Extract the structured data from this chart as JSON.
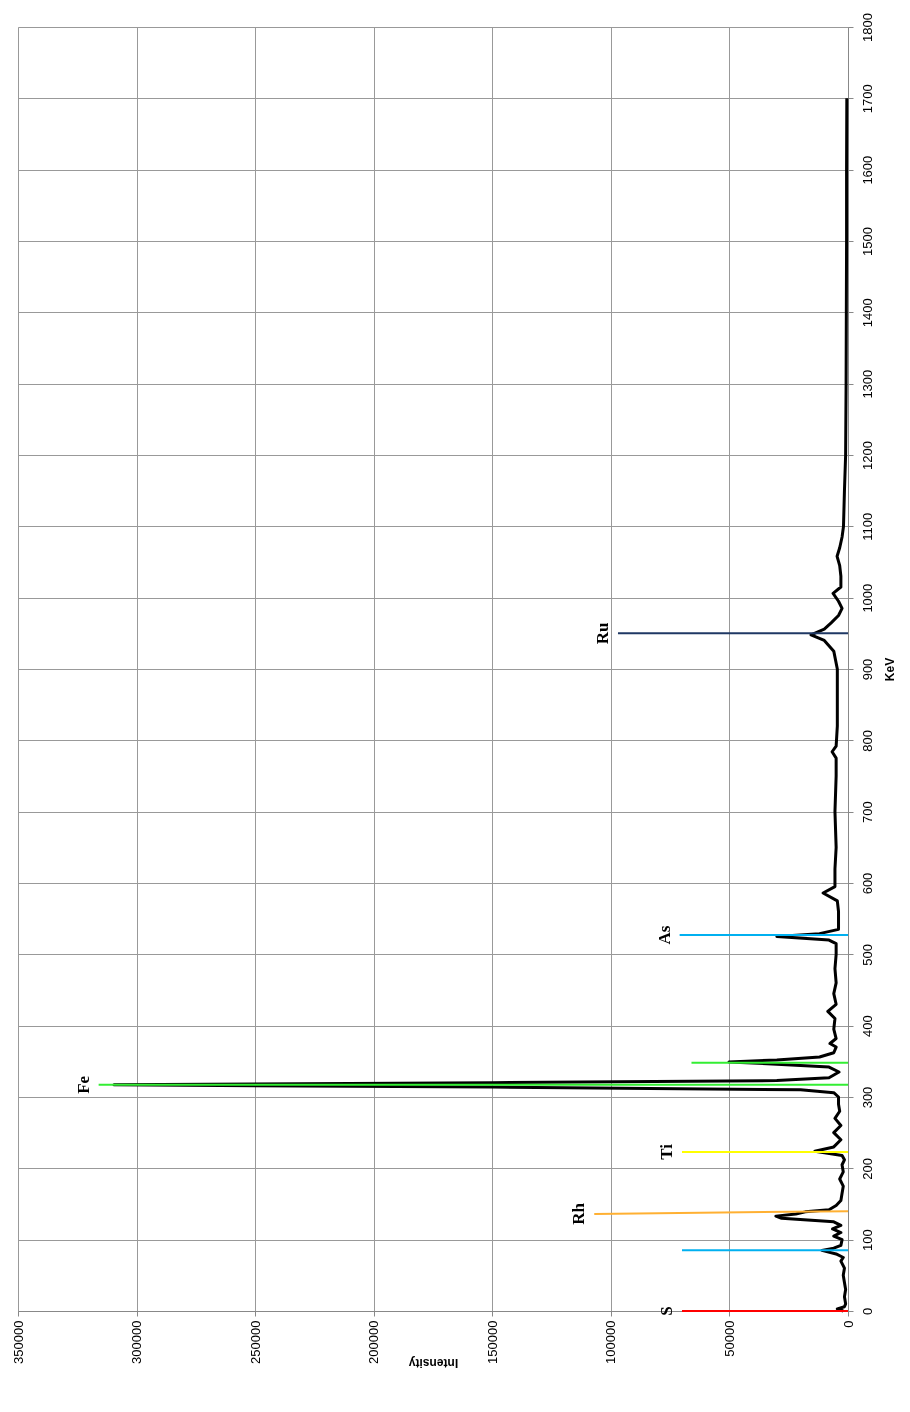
{
  "chart_data": {
    "type": "line",
    "orientation": "horizontal",
    "xlabel": "Intensity",
    "ylabel": "KeV",
    "ylim": [
      0,
      1800
    ],
    "yticks": [
      0,
      100,
      200,
      300,
      400,
      500,
      600,
      700,
      800,
      900,
      1000,
      1100,
      1200,
      1300,
      1400,
      1500,
      1600,
      1700,
      1800
    ],
    "xlim": [
      350000,
      0
    ],
    "xticks": [
      0,
      50000,
      100000,
      150000,
      200000,
      250000,
      300000,
      350000
    ],
    "grid": true,
    "marker": "none",
    "line_style": "solid",
    "series": [
      {
        "type": "line",
        "color": "#000000",
        "x": [
          0,
          3,
          6,
          10,
          20,
          30,
          40,
          50,
          60,
          70,
          75,
          80,
          85,
          88,
          92,
          100,
          105,
          110,
          115,
          120,
          125,
          130,
          133,
          136,
          139,
          142,
          148,
          155,
          165,
          175,
          185,
          195,
          205,
          212,
          218,
          224,
          230,
          240,
          250,
          260,
          270,
          280,
          290,
          300,
          306,
          310,
          314,
          317,
          320,
          323,
          327,
          335,
          342,
          346,
          349,
          352,
          356,
          362,
          370,
          375,
          382,
          395,
          410,
          420,
          430,
          445,
          460,
          480,
          500,
          515,
          520,
          525,
          529,
          535,
          545,
          560,
          575,
          586,
          595,
          620,
          650,
          700,
          750,
          775,
          784,
          792,
          820,
          860,
          900,
          925,
          940,
          948,
          956,
          965,
          975,
          985,
          995,
          1006,
          1015,
          1030,
          1045,
          1058,
          1070,
          1085,
          1100,
          1150,
          1200,
          1300,
          1400,
          1500,
          1600,
          1700
        ],
        "values": [
          2000,
          4500,
          1500,
          1000,
          1500,
          1000,
          1500,
          2000,
          1500,
          3000,
          2000,
          5000,
          11000,
          6000,
          3000,
          2500,
          6000,
          3000,
          6500,
          3000,
          6000,
          28000,
          30400,
          22000,
          18000,
          8000,
          5000,
          3000,
          2500,
          2000,
          3500,
          2000,
          2500,
          1500,
          2500,
          14000,
          6000,
          3000,
          6000,
          3000,
          5500,
          3500,
          4000,
          4000,
          6000,
          20000,
          150000,
          309500,
          150000,
          30000,
          8000,
          3800,
          8000,
          30000,
          50200,
          30000,
          12000,
          6000,
          5000,
          7600,
          5000,
          6000,
          5500,
          8500,
          5000,
          6000,
          5000,
          5500,
          5000,
          5000,
          8000,
          30000,
          12000,
          4000,
          4000,
          4000,
          4500,
          10500,
          5500,
          5500,
          5000,
          5500,
          5000,
          5000,
          6700,
          5000,
          4500,
          4500,
          4500,
          6000,
          10000,
          15600,
          10000,
          7000,
          4000,
          2500,
          4000,
          6300,
          3000,
          3000,
          3500,
          4600,
          3500,
          2500,
          1900,
          1500,
          1000,
          800,
          700,
          600,
          600,
          500
        ]
      },
      {
        "type": "line",
        "name": "S",
        "color": "#ff0000",
        "x": [
          0,
          0
        ],
        "values": [
          0,
          70000
        ]
      },
      {
        "type": "line",
        "color": "#00b0f0",
        "x": [
          85,
          85
        ],
        "values": [
          0,
          70000
        ]
      },
      {
        "type": "line",
        "name": "Rh",
        "color": "#ffb032",
        "x": [
          140,
          136
        ],
        "values": [
          0,
          107000
        ]
      },
      {
        "type": "line",
        "name": "Ti",
        "color": "#ffff00",
        "x": [
          223,
          223
        ],
        "values": [
          0,
          70000
        ]
      },
      {
        "type": "line",
        "name": "Fe",
        "color": "#33ee33",
        "x": [
          317,
          317
        ],
        "values": [
          0,
          316000
        ]
      },
      {
        "type": "line",
        "color": "#33ee33",
        "x": [
          348,
          348
        ],
        "values": [
          0,
          66000
        ]
      },
      {
        "type": "line",
        "name": "As",
        "color": "#00b0f0",
        "x": [
          527,
          527
        ],
        "values": [
          0,
          71000
        ]
      },
      {
        "type": "line",
        "name": "Ru",
        "color": "#1f3864",
        "x": [
          950,
          950
        ],
        "values": [
          0,
          97000
        ]
      }
    ]
  }
}
